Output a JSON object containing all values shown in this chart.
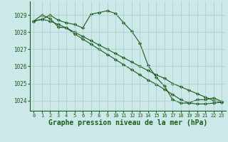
{
  "background_color": "#cce8e8",
  "grid_color": "#aacccc",
  "line_color": "#1a5c1a",
  "marker_color": "#1a5c1a",
  "xlabel": "Graphe pression niveau de la mer (hPa)",
  "xlabel_fontsize": 7,
  "xlim": [
    -0.5,
    23.5
  ],
  "ylim": [
    1023.4,
    1029.8
  ],
  "yticks": [
    1024,
    1025,
    1026,
    1027,
    1028,
    1029
  ],
  "xticks": [
    0,
    1,
    2,
    3,
    4,
    5,
    6,
    7,
    8,
    9,
    10,
    11,
    12,
    13,
    14,
    15,
    16,
    17,
    18,
    19,
    20,
    21,
    22,
    23
  ],
  "series": [
    [
      1028.65,
      1028.75,
      1029.0,
      1028.7,
      1028.55,
      1028.45,
      1028.25,
      1029.05,
      1029.15,
      1029.25,
      1029.1,
      1028.55,
      1028.05,
      1027.35,
      1026.05,
      1025.35,
      1024.85,
      1024.05,
      1023.85,
      1023.85,
      1024.05,
      1024.05,
      1024.15,
      1023.95
    ],
    [
      1028.65,
      1029.0,
      1028.8,
      1028.3,
      1028.25,
      1027.9,
      1027.6,
      1027.3,
      1027.0,
      1026.7,
      1026.4,
      1026.1,
      1025.8,
      1025.5,
      1025.2,
      1024.95,
      1024.65,
      1024.35,
      1024.05,
      1023.85,
      1023.8,
      1023.8,
      1023.85,
      1023.9
    ],
    [
      1028.65,
      1028.75,
      1028.65,
      1028.45,
      1028.25,
      1028.0,
      1027.75,
      1027.5,
      1027.25,
      1027.0,
      1026.75,
      1026.5,
      1026.25,
      1026.0,
      1025.75,
      1025.5,
      1025.3,
      1025.0,
      1024.8,
      1024.6,
      1024.4,
      1024.2,
      1024.0,
      1023.9
    ]
  ]
}
